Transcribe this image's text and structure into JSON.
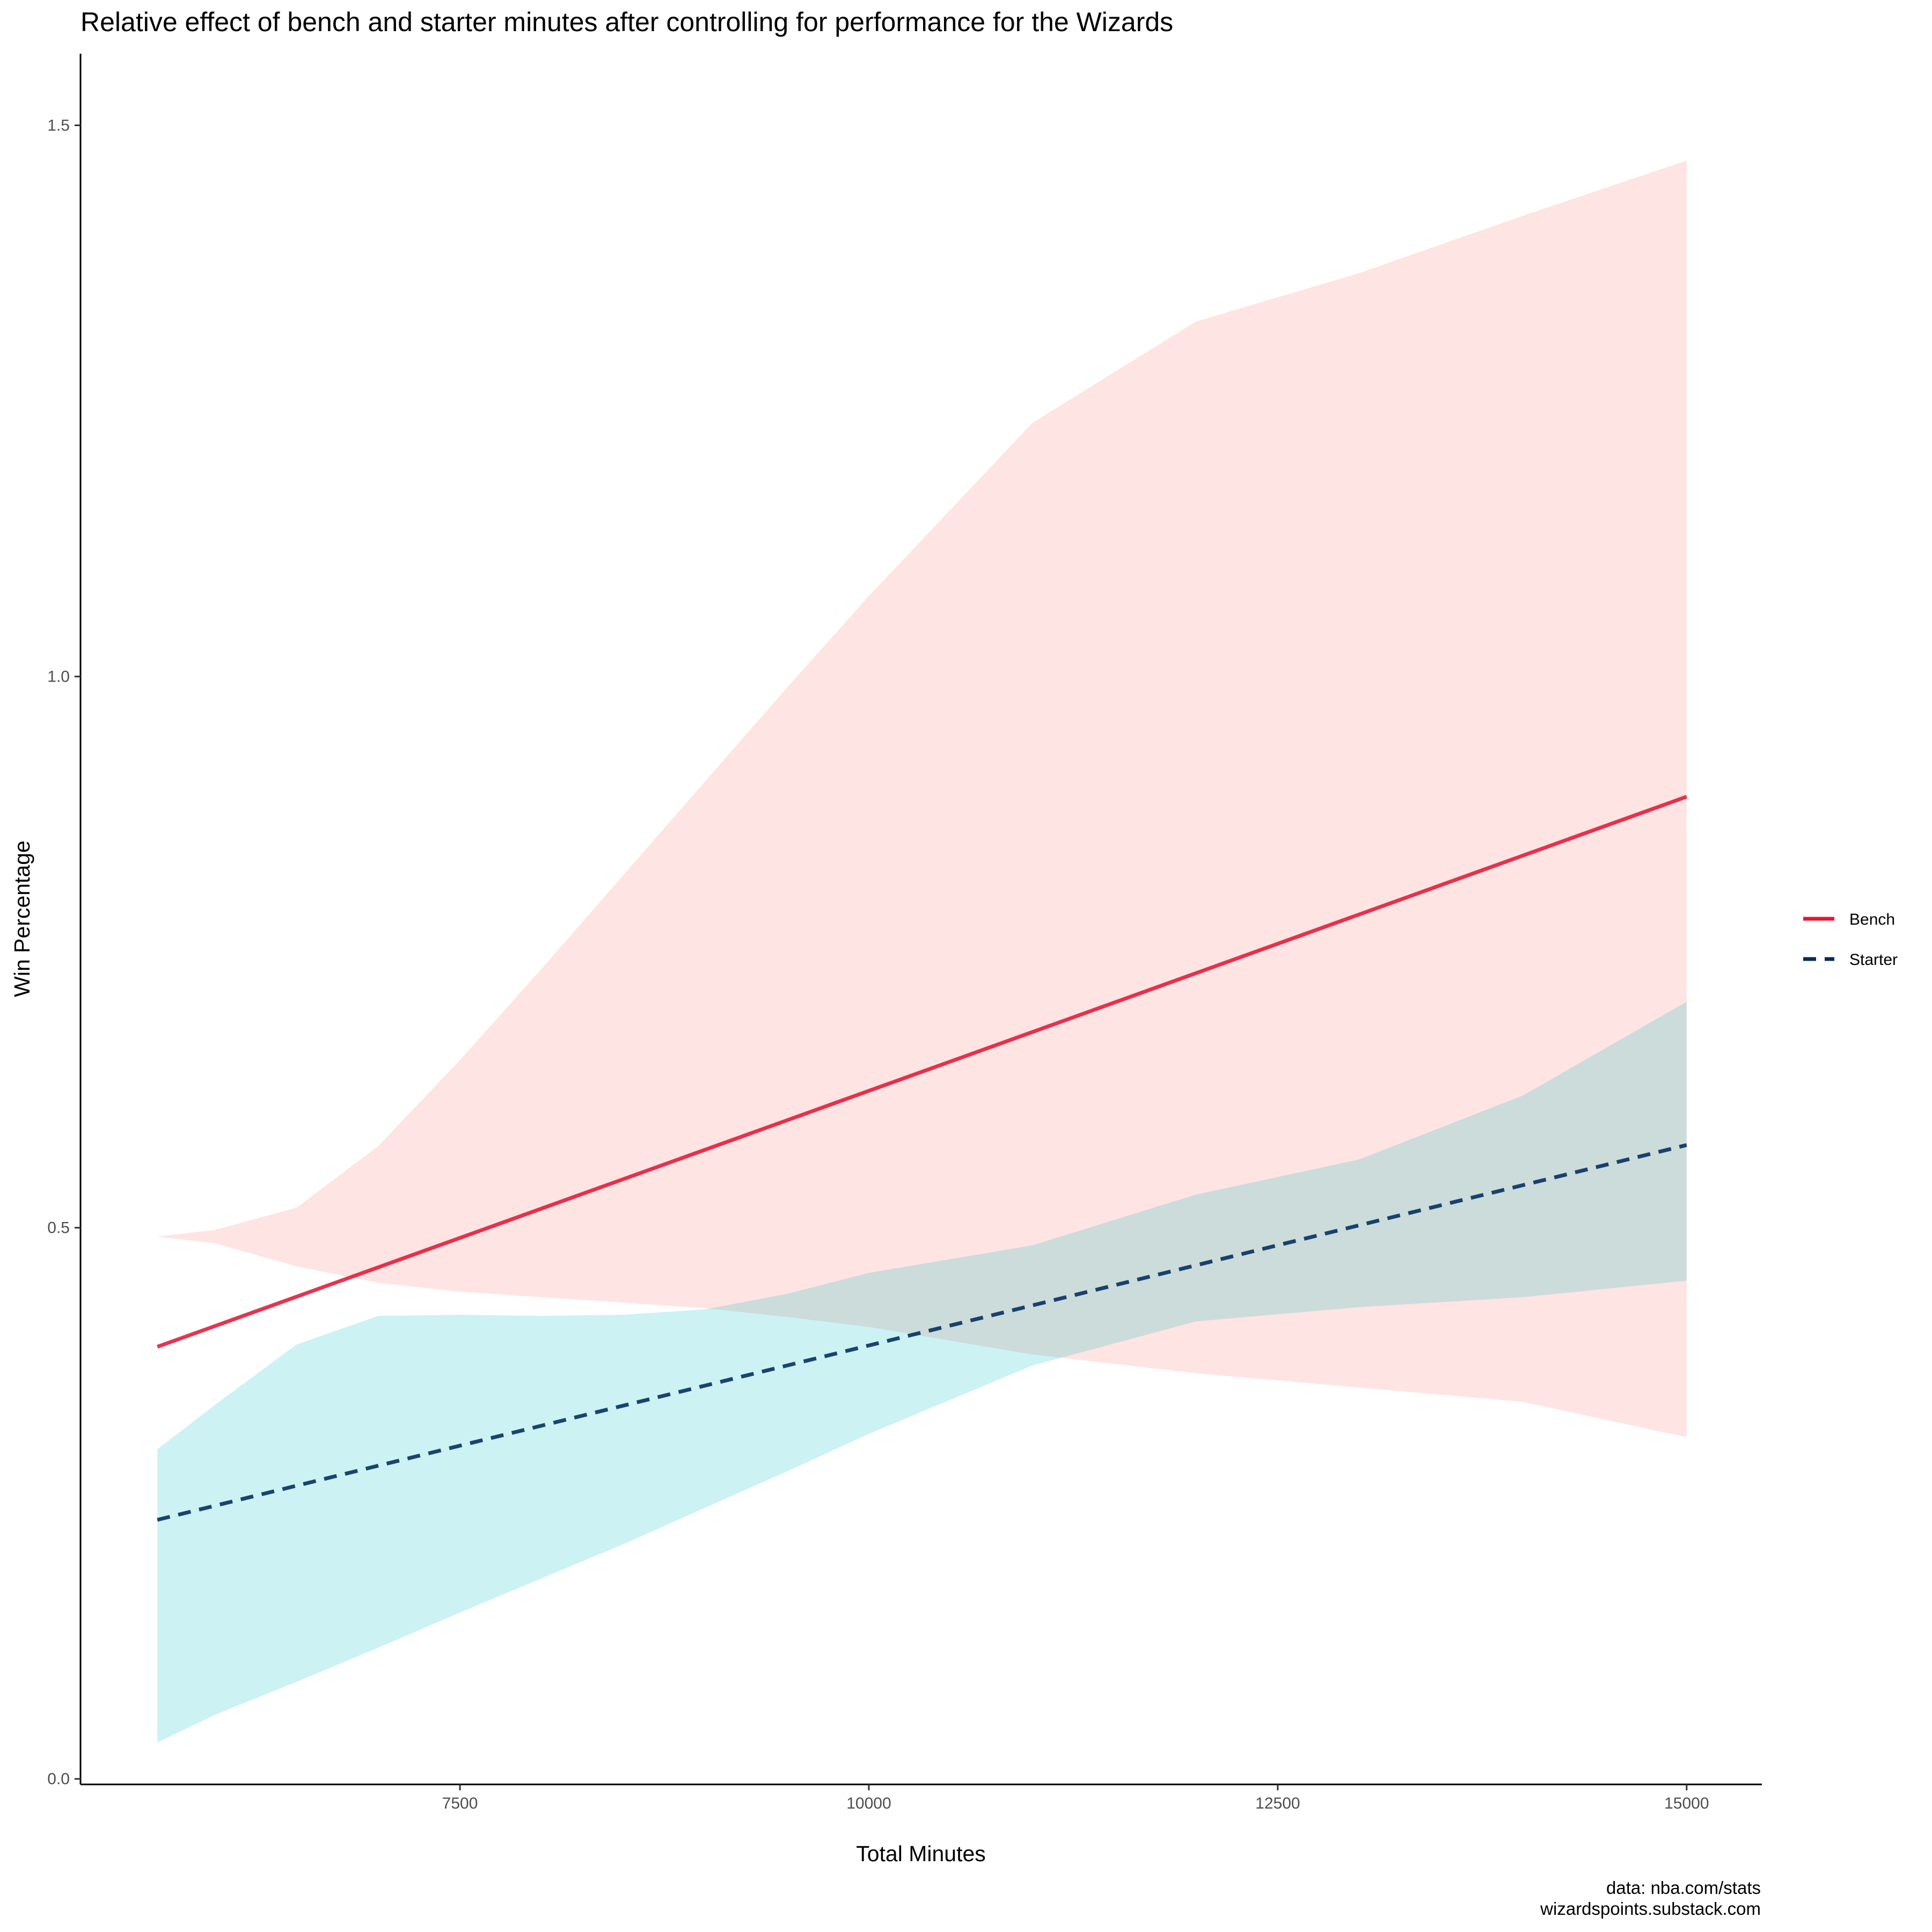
{
  "chart_data": {
    "type": "line",
    "title": "Relative effect of bench and starter minutes after controlling for performance for the Wizards",
    "xlabel": "Total Minutes",
    "ylabel": "Win Percentage",
    "xlim": [
      5180,
      15460
    ],
    "ylim": [
      -0.005,
      1.565
    ],
    "xticks": [
      7500,
      10000,
      12500,
      15000
    ],
    "xtick_labels": [
      "7500",
      "10000",
      "12500",
      "15000"
    ],
    "yticks": [
      0.0,
      0.5,
      1.0,
      1.5
    ],
    "ytick_labels": [
      "0.0",
      "0.5",
      "1.0",
      "1.5"
    ],
    "grid": false,
    "legend_position": "right",
    "series": [
      {
        "name": "Bench",
        "color": "#E31837",
        "line_style": "solid",
        "band_color": "#F8766D",
        "x": [
          5650,
          15000
        ],
        "values": [
          0.392,
          0.891
        ],
        "ribbon": {
          "x": [
            5650,
            6000,
            6500,
            7000,
            7500,
            8000,
            8500,
            9000,
            9500,
            10000,
            11000,
            12000,
            13000,
            14000,
            15000
          ],
          "lower": [
            0.492,
            0.486,
            0.465,
            0.45,
            0.442,
            0.437,
            0.432,
            0.427,
            0.419,
            0.41,
            0.385,
            0.368,
            0.355,
            0.342,
            0.31
          ],
          "upper": [
            0.492,
            0.498,
            0.518,
            0.574,
            0.652,
            0.735,
            0.82,
            0.905,
            0.99,
            1.073,
            1.23,
            1.322,
            1.366,
            1.418,
            1.468
          ]
        }
      },
      {
        "name": "Starter",
        "color": "#002B5C",
        "line_style": "dashed",
        "band_color": "#00BFC4",
        "x": [
          5650,
          15000
        ],
        "values": [
          0.235,
          0.575
        ],
        "ribbon": {
          "x": [
            5650,
            6000,
            6500,
            7000,
            7500,
            8000,
            8500,
            9000,
            9500,
            10000,
            11000,
            12000,
            13000,
            14000,
            15000
          ],
          "lower": [
            0.033,
            0.058,
            0.088,
            0.119,
            0.151,
            0.182,
            0.213,
            0.246,
            0.279,
            0.313,
            0.375,
            0.415,
            0.428,
            0.437,
            0.452
          ],
          "upper": [
            0.299,
            0.339,
            0.394,
            0.42,
            0.421,
            0.42,
            0.421,
            0.426,
            0.44,
            0.459,
            0.484,
            0.53,
            0.562,
            0.62,
            0.705
          ]
        }
      }
    ]
  },
  "caption": {
    "line1": "data: nba.com/stats",
    "line2": "wizardspoints.substack.com"
  }
}
